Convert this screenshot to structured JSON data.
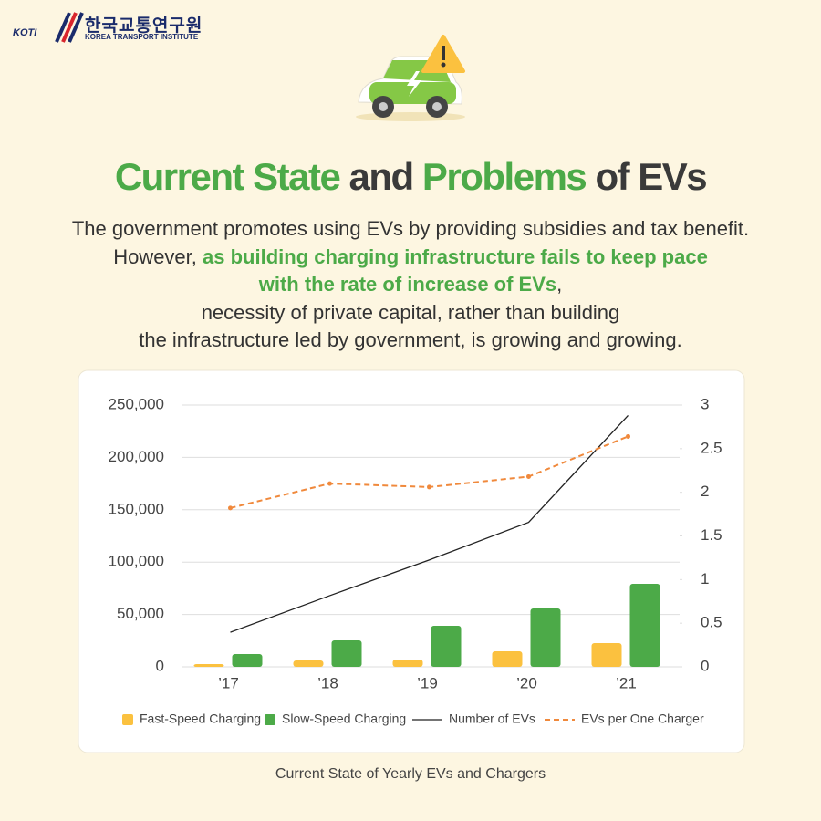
{
  "logo": {
    "mark": "KOTI",
    "name_ko": "한국교통연구원",
    "name_en": "KOREA TRANSPORT INSTITUTE"
  },
  "headline": {
    "parts": [
      {
        "text": "Current State",
        "highlight": true
      },
      {
        "text": " and ",
        "highlight": false
      },
      {
        "text": "Problems",
        "highlight": true
      },
      {
        "text": " of EVs",
        "highlight": false
      }
    ]
  },
  "body": {
    "lines": [
      [
        {
          "text": "The government promotes using EVs by providing subsidies and tax benefit.",
          "highlight": false
        }
      ],
      [
        {
          "text": "However, ",
          "highlight": false
        },
        {
          "text": "as building charging infrastructure fails to keep pace",
          "highlight": true
        }
      ],
      [
        {
          "text": "with the rate of increase of EVs",
          "highlight": true
        },
        {
          "text": ",",
          "highlight": false
        }
      ],
      [
        {
          "text": "necessity of private capital, rather than building",
          "highlight": false
        }
      ],
      [
        {
          "text": "the infrastructure led by government, is growing and growing.",
          "highlight": false
        }
      ]
    ]
  },
  "chart_data": {
    "type": "bar",
    "title": "Current State of Yearly EVs and Chargers",
    "categories": [
      "’17",
      "’18",
      "’19",
      "’20",
      "’21"
    ],
    "ylim": [
      0,
      250000
    ],
    "yticks": [
      0,
      {
        "value": 50000,
        "label": "50,000"
      },
      {
        "value": 100000,
        "label": "100,000"
      },
      {
        "value": 150000,
        "label": "150,000"
      },
      {
        "value": 200000,
        "label": "200,000"
      },
      {
        "value": 250000,
        "label": "250,000"
      }
    ],
    "y2lim": [
      0,
      3
    ],
    "y2ticks": [
      0,
      0.5,
      1,
      1.5,
      2,
      2.5,
      3
    ],
    "grid": true,
    "legend": "bottom",
    "series": [
      {
        "name": "Fast-Speed Charging",
        "type": "bar",
        "color": "#fbc13f",
        "values": [
          2600,
          6100,
          7000,
          14800,
          22600
        ]
      },
      {
        "name": "Slow-Speed Charging",
        "type": "bar",
        "color": "#4caa48",
        "values": [
          12200,
          25300,
          39200,
          55700,
          79300
        ]
      },
      {
        "name": "Number of EVs",
        "type": "line",
        "color": "#222222",
        "values": [
          33000,
          68000,
          102000,
          138000,
          240000
        ]
      },
      {
        "name": "EVs per One Charger",
        "type": "line",
        "dashed": true,
        "axis": "y2",
        "color": "#f0893c",
        "values": [
          1.82,
          2.1,
          2.06,
          2.18,
          2.64
        ]
      }
    ]
  }
}
